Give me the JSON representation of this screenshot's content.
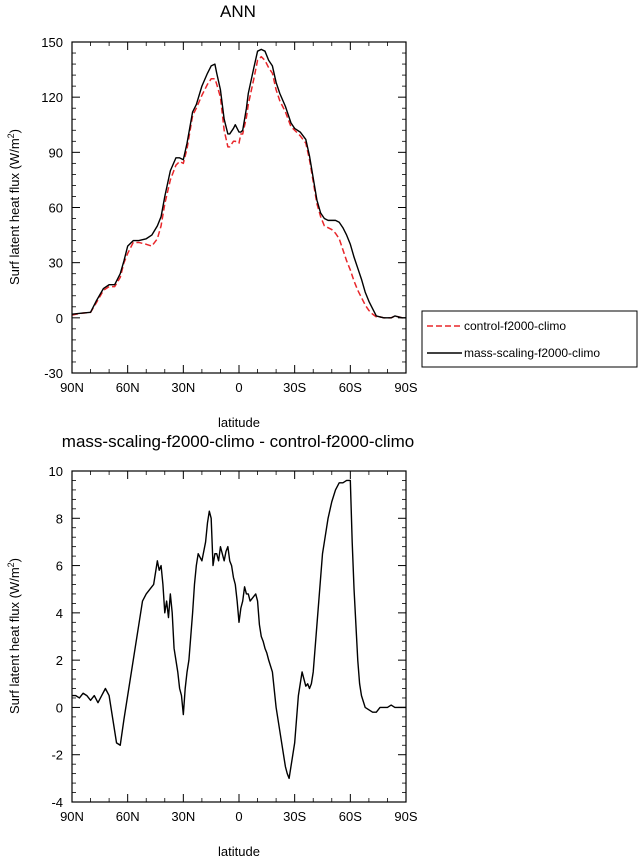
{
  "chart_data": [
    {
      "type": "line",
      "title": "ANN",
      "xlabel": "latitude",
      "ylabel_main": "Surf latent heat flux (W/m",
      "ylabel_sup": "2",
      "ylabel_close": ")",
      "xlim": [
        -90,
        90
      ],
      "ylim": [
        -30,
        150
      ],
      "xticks": [
        -90,
        -60,
        -30,
        0,
        30,
        60,
        90
      ],
      "xtick_labels": [
        "90N",
        "60N",
        "30N",
        "0",
        "30S",
        "60S",
        "90S"
      ],
      "yticks": [
        -30,
        0,
        30,
        60,
        90,
        120,
        150
      ],
      "ytick_labels": [
        "-30",
        "0",
        "30",
        "60",
        "90",
        "120",
        "150"
      ],
      "legend": {
        "placement": "right"
      },
      "series": [
        {
          "name": "control-f2000-climo",
          "color": "#e8262a",
          "dash": "dashed",
          "x": [
            -90,
            -85,
            -80,
            -77,
            -73,
            -70,
            -67,
            -64,
            -62,
            -60,
            -57,
            -54,
            -50,
            -47,
            -44,
            -42,
            -40,
            -37,
            -34,
            -32,
            -30,
            -28,
            -25,
            -23,
            -20,
            -17,
            -15,
            -13,
            -12,
            -10,
            -8,
            -6,
            -5,
            -3,
            -2,
            0,
            1,
            2,
            4,
            5,
            8,
            10,
            12,
            14,
            16,
            18,
            20,
            22,
            25,
            28,
            30,
            33,
            36,
            38,
            40,
            42,
            44,
            46,
            48,
            50,
            52,
            54,
            56,
            58,
            60,
            62,
            64,
            66,
            68,
            70,
            72,
            74,
            76,
            78,
            80,
            82,
            84,
            86,
            88,
            90
          ],
          "y": [
            1.5,
            2.5,
            3,
            8,
            15,
            17,
            17,
            22,
            30,
            35,
            41,
            41,
            40,
            39,
            43,
            50,
            62,
            75,
            83,
            85,
            84,
            92,
            110,
            114,
            121,
            127,
            130,
            130,
            127,
            120,
            102,
            93,
            93,
            96,
            96,
            95,
            100,
            100,
            109,
            116,
            130,
            140,
            142,
            140,
            136,
            133,
            124,
            118,
            112,
            104,
            102,
            99,
            95,
            86,
            74,
            62,
            55,
            50,
            49,
            48,
            46,
            43,
            37,
            31,
            26,
            20,
            15,
            11,
            7,
            4,
            2,
            0.5,
            0.5,
            0,
            0,
            0,
            1,
            0.5,
            0,
            0
          ]
        },
        {
          "name": "mass-scaling-f2000-climo",
          "color": "#000000",
          "dash": "solid",
          "x": [
            -90,
            -85,
            -80,
            -77,
            -73,
            -70,
            -67,
            -64,
            -62,
            -60,
            -57,
            -54,
            -50,
            -47,
            -44,
            -42,
            -40,
            -37,
            -34,
            -32,
            -30,
            -28,
            -25,
            -23,
            -20,
            -17,
            -15,
            -13,
            -12,
            -10,
            -8,
            -6,
            -5,
            -3,
            -2,
            0,
            1,
            2,
            4,
            5,
            8,
            10,
            12,
            14,
            16,
            18,
            20,
            22,
            25,
            28,
            30,
            33,
            36,
            38,
            40,
            42,
            44,
            46,
            48,
            50,
            52,
            54,
            56,
            58,
            60,
            62,
            64,
            66,
            68,
            70,
            72,
            74,
            76,
            78,
            80,
            82,
            84,
            86,
            88,
            90
          ],
          "y": [
            2,
            2.5,
            3,
            9,
            16,
            18,
            18,
            24,
            31,
            39,
            42,
            42,
            43,
            45,
            50,
            55,
            66,
            80,
            87,
            87,
            86,
            95,
            112,
            116,
            126,
            133,
            137,
            138,
            133,
            124,
            108,
            100,
            100,
            103,
            105,
            101,
            101,
            102,
            114,
            122,
            136,
            145,
            146,
            145,
            140,
            137,
            128,
            122,
            115,
            106,
            103,
            101,
            97,
            88,
            76,
            64,
            57,
            54,
            53,
            53,
            53,
            52,
            49,
            45,
            40,
            33,
            27,
            21,
            14,
            9,
            5,
            1,
            0.5,
            0,
            0,
            0,
            1,
            0.5,
            0,
            0
          ]
        }
      ]
    },
    {
      "type": "line",
      "title": "mass-scaling-f2000-climo - control-f2000-climo",
      "xlabel": "latitude",
      "ylabel_main": "Surf latent heat flux (W/m",
      "ylabel_sup": "2",
      "ylabel_close": ")",
      "xlim": [
        -90,
        90
      ],
      "ylim": [
        -4,
        10
      ],
      "xticks": [
        -90,
        -60,
        -30,
        0,
        30,
        60,
        90
      ],
      "xtick_labels": [
        "90N",
        "60N",
        "30N",
        "0",
        "30S",
        "60S",
        "90S"
      ],
      "yticks": [
        -4,
        -2,
        0,
        2,
        4,
        6,
        8,
        10
      ],
      "ytick_labels": [
        "-4",
        "-2",
        "0",
        "2",
        "4",
        "6",
        "8",
        "10"
      ],
      "series": [
        {
          "name": "mass-scaling-f2000-climo - control-f2000-climo",
          "color": "#000000",
          "dash": "solid",
          "x": [
            -90,
            -88,
            -86,
            -84,
            -82,
            -80,
            -78,
            -76,
            -74,
            -72,
            -70,
            -68,
            -66,
            -64,
            -62,
            -60,
            -58,
            -56,
            -54,
            -52,
            -50,
            -48,
            -46,
            -44,
            -43,
            -42,
            -41,
            -40,
            -39,
            -38,
            -37,
            -36,
            -35,
            -34,
            -33,
            -32,
            -31,
            -30,
            -29,
            -28,
            -27,
            -26,
            -25,
            -24,
            -23,
            -22,
            -20,
            -18,
            -17,
            -16,
            -15,
            -14,
            -13,
            -12,
            -11,
            -10,
            -9,
            -8,
            -7,
            -6,
            -5,
            -4,
            -3,
            -2,
            -1,
            0,
            1,
            2,
            3,
            4,
            5,
            6,
            7,
            8,
            9,
            10,
            11,
            12,
            13,
            14,
            15,
            16,
            18,
            20,
            22,
            24,
            25,
            26,
            27,
            28,
            29,
            30,
            31,
            32,
            33,
            34,
            35,
            36,
            37,
            38,
            39,
            40,
            41,
            42,
            43,
            44,
            45,
            46,
            48,
            50,
            52,
            54,
            56,
            58,
            60,
            61,
            62,
            63,
            64,
            65,
            66,
            68,
            70,
            72,
            74,
            76,
            78,
            80,
            82,
            84,
            86,
            88,
            90
          ],
          "y": [
            0.5,
            0.5,
            0.4,
            0.6,
            0.5,
            0.3,
            0.5,
            0.2,
            0.5,
            0.8,
            0.5,
            -0.5,
            -1.5,
            -1.6,
            -0.5,
            0.5,
            1.5,
            2.5,
            3.5,
            4.5,
            4.8,
            5,
            5.2,
            6.2,
            5.8,
            6,
            5.2,
            4,
            4.5,
            3.8,
            4.8,
            4,
            2.5,
            2,
            1.5,
            0.8,
            0.5,
            -0.3,
            0.8,
            1.5,
            2,
            3,
            4,
            5.2,
            6,
            6.5,
            6.2,
            7,
            7.8,
            8.3,
            8,
            6,
            6.5,
            6.5,
            6.2,
            6.8,
            6.5,
            6.2,
            6.6,
            6.8,
            6.2,
            6,
            5.5,
            5.2,
            4.5,
            3.6,
            4.2,
            4.5,
            5.1,
            4.8,
            4.8,
            4.5,
            4.6,
            4.7,
            4.8,
            4.5,
            3.5,
            3,
            2.8,
            2.5,
            2.3,
            2,
            1.5,
            0,
            -1,
            -2,
            -2.5,
            -2.8,
            -3,
            -2.5,
            -2,
            -1.5,
            -0.5,
            0.5,
            1,
            1.5,
            1.2,
            0.9,
            1,
            0.8,
            1,
            1.5,
            2.5,
            3.5,
            4.5,
            5.5,
            6.5,
            7,
            8,
            8.7,
            9.2,
            9.5,
            9.5,
            9.6,
            9.6,
            7,
            5,
            3.5,
            2,
            1,
            0.5,
            0,
            -0.1,
            -0.2,
            -0.2,
            0,
            0,
            0,
            0.1,
            0,
            0,
            0,
            0
          ]
        }
      ]
    }
  ]
}
